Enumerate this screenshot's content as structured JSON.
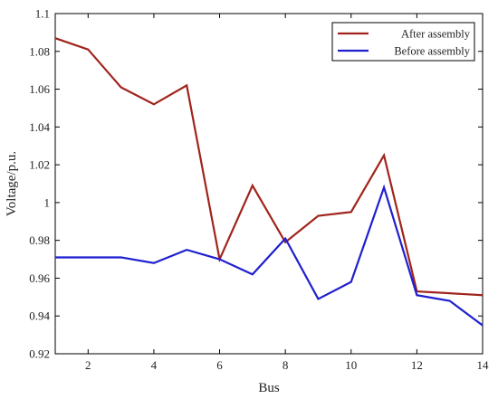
{
  "chart_data": {
    "type": "line",
    "title": "",
    "xlabel": "Bus",
    "ylabel": "Voltage/p.u.",
    "xlim": [
      1,
      14
    ],
    "ylim": [
      0.92,
      1.1
    ],
    "xticks": [
      2,
      4,
      6,
      8,
      10,
      12,
      14
    ],
    "yticks": [
      0.92,
      0.94,
      0.96,
      0.98,
      1.0,
      1.02,
      1.04,
      1.06,
      1.08,
      1.1
    ],
    "ytick_labels": [
      "0.92",
      "0.94",
      "0.96",
      "0.98",
      "1",
      "1.02",
      "1.04",
      "1.06",
      "1.08",
      "1.1"
    ],
    "grid": false,
    "legend_position": "top-right",
    "x": [
      1,
      2,
      3,
      4,
      5,
      6,
      7,
      8,
      9,
      10,
      11,
      12,
      13,
      14
    ],
    "series": [
      {
        "name": "After assembly",
        "color": "#a0241c",
        "values": [
          1.087,
          1.081,
          1.061,
          1.052,
          1.062,
          0.97,
          1.009,
          0.979,
          0.993,
          0.995,
          1.025,
          0.953,
          0.952,
          0.951
        ]
      },
      {
        "name": "Before assembly",
        "color": "#1f1fd0",
        "values": [
          0.971,
          0.971,
          0.971,
          0.968,
          0.975,
          0.97,
          0.962,
          0.981,
          0.949,
          0.958,
          1.008,
          0.951,
          0.948,
          0.935
        ]
      }
    ]
  }
}
